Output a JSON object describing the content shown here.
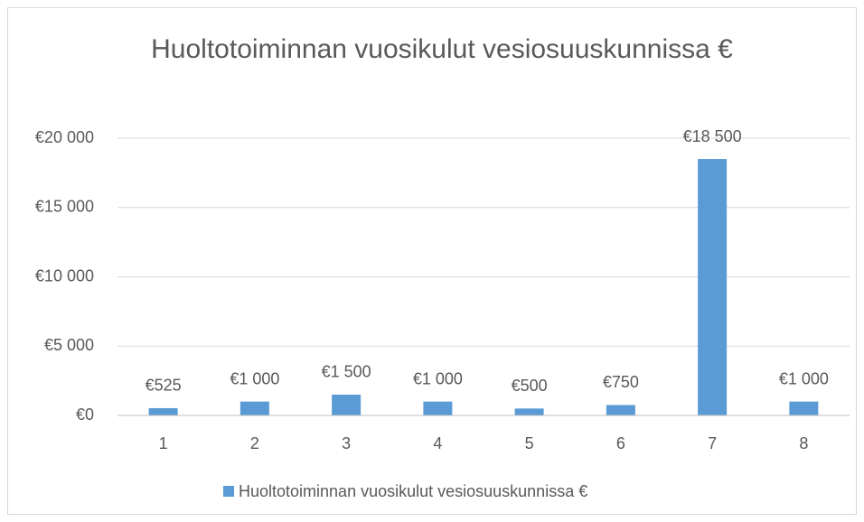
{
  "chart_data": {
    "type": "bar",
    "title": "Huoltotoiminnan vuosikulut vesiosuuskunnissa €",
    "categories": [
      "1",
      "2",
      "3",
      "4",
      "5",
      "6",
      "7",
      "8"
    ],
    "series": [
      {
        "name": "Huoltotoiminnan vuosikulut vesiosuuskunnissa €",
        "color": "#5b9bd5",
        "values": [
          525,
          1000,
          1500,
          1000,
          500,
          750,
          18500,
          1000
        ],
        "value_labels": [
          "€525",
          "€1 000",
          "€1 500",
          "€1 000",
          "€500",
          "€750",
          "€18 500",
          "€1 000"
        ]
      }
    ],
    "ylim": [
      0,
      20000
    ],
    "yticks": [
      {
        "value": 0,
        "label": "€0"
      },
      {
        "value": 5000,
        "label": "€5 000"
      },
      {
        "value": 10000,
        "label": "€10 000"
      },
      {
        "value": 15000,
        "label": "€15 000"
      },
      {
        "value": 20000,
        "label": "€20 000"
      }
    ],
    "grid": true,
    "legend": "bottom"
  }
}
